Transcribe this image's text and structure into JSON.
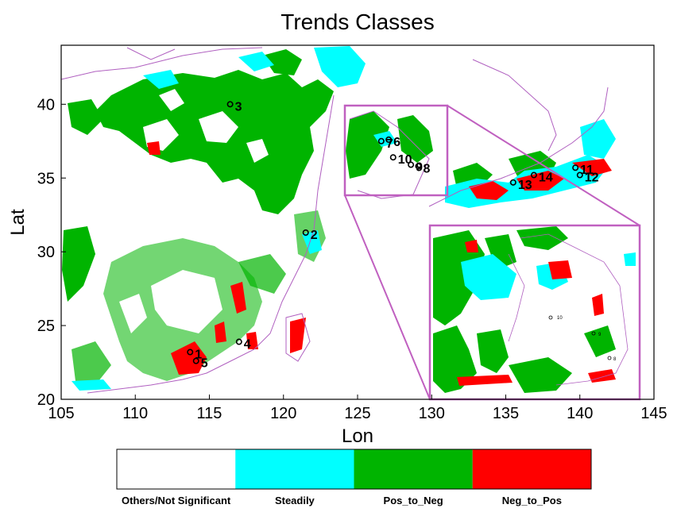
{
  "title": "Trends Classes",
  "xlabel": "Lon",
  "ylabel": "Lat",
  "xlim": [
    105,
    145
  ],
  "ylim": [
    20,
    44
  ],
  "xticks": [
    "105",
    "110",
    "115",
    "120",
    "125",
    "130",
    "135",
    "140",
    "145"
  ],
  "yticks": [
    "20",
    "25",
    "30",
    "35",
    "40"
  ],
  "classes": [
    {
      "label": "Others/Not Significant",
      "color": "#ffffff"
    },
    {
      "label": "Steadily",
      "color": "#00ffff"
    },
    {
      "label": "Pos_to_Neg",
      "color": "#00b400"
    },
    {
      "label": "Neg_to_Pos",
      "color": "#ff0000"
    }
  ],
  "sites": [
    {
      "id": "1",
      "lon": 113.7,
      "lat": 23.2
    },
    {
      "id": "2",
      "lon": 121.5,
      "lat": 31.3
    },
    {
      "id": "3",
      "lon": 116.4,
      "lat": 40.0
    },
    {
      "id": "4",
      "lon": 117.0,
      "lat": 23.9
    },
    {
      "id": "5",
      "lon": 114.1,
      "lat": 22.6
    },
    {
      "id": "6",
      "lon": 127.1,
      "lat": 37.6
    },
    {
      "id": "7",
      "lon": 126.6,
      "lat": 37.5
    },
    {
      "id": "8",
      "lon": 129.1,
      "lat": 35.8
    },
    {
      "id": "9",
      "lon": 128.6,
      "lat": 35.9
    },
    {
      "id": "10",
      "lon": 127.4,
      "lat": 36.4
    },
    {
      "id": "11",
      "lon": 139.7,
      "lat": 35.7
    },
    {
      "id": "12",
      "lon": 140.0,
      "lat": 35.2
    },
    {
      "id": "13",
      "lon": 135.5,
      "lat": 34.7
    },
    {
      "id": "14",
      "lon": 136.9,
      "lat": 35.2
    }
  ],
  "inset_labels": [
    "10",
    "9",
    "8"
  ],
  "colors": {
    "coast": "#b060c0",
    "box": "#c060c0",
    "steadily": "#00ffff",
    "pos_to_neg": "#00b400",
    "neg_to_pos": "#ff0000"
  }
}
